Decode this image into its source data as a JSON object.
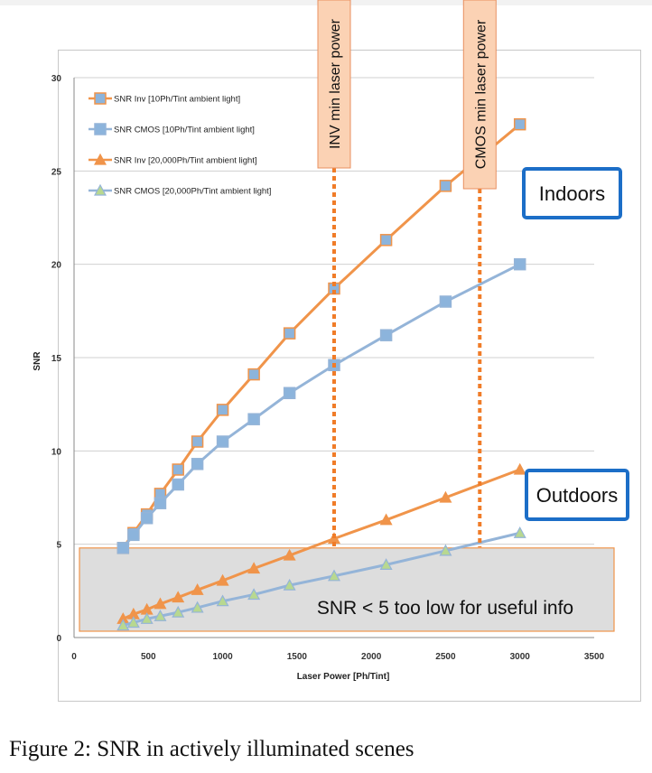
{
  "caption": "Figure 2: SNR in actively illuminated scenes",
  "colors": {
    "inv_line": "#f0944a",
    "cmos_line": "#94b4d8",
    "square_marker": "#8cb4dc",
    "triangle_marker_inv": "#f0944a",
    "triangle_marker_cmos": "#b8d890",
    "grid": "#d0d0d0",
    "box_border": "#1c6ec7",
    "threshold_line": "#f07c28",
    "threshold_label_bg": "#fbd2b4",
    "low_region_fill": "#dddddd",
    "low_region_border": "#f0944a"
  },
  "chart_data": {
    "type": "line",
    "title": "",
    "xlabel": "Laser Power [Ph/Tint]",
    "ylabel": "SNR",
    "xlim": [
      0,
      3500
    ],
    "ylim": [
      0,
      30
    ],
    "xticks": [
      0,
      500,
      1000,
      1500,
      2000,
      2500,
      3000,
      3500
    ],
    "yticks": [
      0,
      5,
      10,
      15,
      20,
      25,
      30
    ],
    "grid": true,
    "legend_position": "top-left",
    "series": [
      {
        "name": "SNR Inv [10Ph/Tint ambient light]",
        "marker": "square",
        "x": [
          330,
          400,
          490,
          580,
          700,
          830,
          1000,
          1210,
          1450,
          1750,
          2100,
          2500,
          3000
        ],
        "y": [
          4.8,
          5.6,
          6.6,
          7.7,
          9.0,
          10.5,
          12.2,
          14.1,
          16.3,
          18.7,
          21.3,
          24.2,
          27.5
        ]
      },
      {
        "name": "SNR CMOS [10Ph/Tint ambient light]",
        "marker": "square",
        "x": [
          330,
          400,
          490,
          580,
          700,
          830,
          1000,
          1210,
          1450,
          1750,
          2100,
          2500,
          3000
        ],
        "y": [
          4.8,
          5.5,
          6.4,
          7.2,
          8.2,
          9.3,
          10.5,
          11.7,
          13.1,
          14.6,
          16.2,
          18.0,
          20.0
        ]
      },
      {
        "name": "SNR Inv [20,000Ph/Tint ambient light]",
        "marker": "triangle",
        "x": [
          330,
          400,
          490,
          580,
          700,
          830,
          1000,
          1210,
          1450,
          1750,
          2100,
          2500,
          3000
        ],
        "y": [
          1.0,
          1.25,
          1.5,
          1.8,
          2.15,
          2.55,
          3.05,
          3.7,
          4.4,
          5.3,
          6.3,
          7.5,
          9.0
        ]
      },
      {
        "name": "SNR CMOS [20,000Ph/Tint ambient light]",
        "marker": "triangle",
        "x": [
          330,
          400,
          490,
          580,
          700,
          830,
          1000,
          1210,
          1450,
          1750,
          2100,
          2500,
          3000
        ],
        "y": [
          0.65,
          0.8,
          1.0,
          1.15,
          1.35,
          1.6,
          1.95,
          2.3,
          2.8,
          3.3,
          3.9,
          4.65,
          5.6
        ]
      }
    ],
    "annotations": {
      "threshold_lines": [
        {
          "label": "INV min laser power",
          "x": 1750
        },
        {
          "label": "CMOS min laser power",
          "x": 2730
        }
      ],
      "boxes": [
        {
          "label": "Indoors"
        },
        {
          "label": "Outdoors"
        }
      ],
      "low_snr_region": {
        "label": "SNR < 5 too low for useful info",
        "y_max": 4.8
      }
    }
  }
}
